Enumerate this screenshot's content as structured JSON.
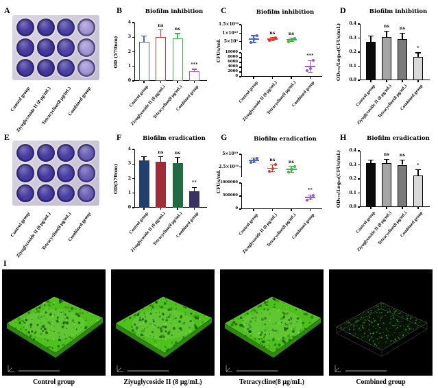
{
  "categories": [
    "Control group",
    "Ziyuglycoside II (8 μg/mL)",
    "Tetracycline(8 μg/mL)",
    "Combined group"
  ],
  "panels": {
    "A": {
      "letter": "A",
      "type": "well-plate-photo",
      "rows": 3,
      "columns": 4,
      "column_labels": [
        "Control group",
        "Ziyuglycoside II (8 μg/mL)",
        "Tetracycline(8 μg/mL)",
        "Combined group"
      ],
      "column_well_colors": [
        "#483ca2",
        "#463aa0",
        "#5044a8",
        "#a79ad8"
      ],
      "plate_color": "#cec9d8"
    },
    "B": {
      "letter": "B"
    },
    "C": {
      "letter": "C"
    },
    "D": {
      "letter": "D"
    },
    "E": {
      "letter": "E",
      "type": "well-plate-photo",
      "rows": 3,
      "columns": 4,
      "column_labels": [
        "Control group",
        "Ziyuglycoside II (8 μg/mL)",
        "Tetracycline(8 μg/mL)",
        "Combined group"
      ],
      "column_well_colors": [
        "#4a3ea6",
        "#483ca4",
        "#4c40a8",
        "#6d61b8"
      ],
      "plate_color": "#ccc7d4"
    },
    "F": {
      "letter": "F"
    },
    "G": {
      "letter": "G"
    },
    "H": {
      "letter": "H"
    },
    "I": {
      "letter": "I",
      "images": [
        {
          "caption": "Control group",
          "density": "dense"
        },
        {
          "caption": "Ziyuglycoside II (8 μg/mL)",
          "density": "dense"
        },
        {
          "caption": "Tetracycline(8 μg/mL)",
          "density": "dense"
        },
        {
          "caption": "Combined group",
          "density": "sparse"
        }
      ],
      "biofilm_color": "#4ec11c",
      "sparse_bg": "#081106"
    }
  },
  "chart_data": [
    {
      "panel": "B",
      "type": "bar",
      "title": "Biofilm inhibition",
      "ylabel": "OD (570nm)",
      "ylim": [
        0,
        4
      ],
      "ytick_labels": [
        "0",
        "1",
        "2",
        "3",
        "4"
      ],
      "categories": [
        "Control group",
        "Ziyuglycoside II (8 μg/mL)",
        "Tetracycline(8 μg/mL)",
        "Combined group"
      ],
      "values": [
        2.7,
        3.0,
        2.9,
        0.65
      ],
      "errors": [
        0.4,
        0.5,
        0.35,
        0.15
      ],
      "significance": [
        "",
        "ns",
        "ns",
        "***"
      ],
      "colors": [
        "#4a64c8",
        "#ee3124",
        "#3fb54b",
        "#9b59c6"
      ],
      "bar_style": "outline"
    },
    {
      "panel": "C",
      "type": "scatter-broken",
      "title": "Biofilm inhibition",
      "ylabel": "CFUs/mL",
      "categories": [
        "Control group",
        "Ziyuglycoside II (8 μg/mL)",
        "Tetracycline(8 μg/mL)",
        "Combined group"
      ],
      "upper": {
        "range": [
          0,
          15000000000.0
        ],
        "ticks": [
          {
            "v": 5000000000.0,
            "label": "5×10⁹"
          },
          {
            "v": 10000000000.0,
            "label": "1×10¹⁰"
          },
          {
            "v": 15000000000.0,
            "label": "1.5×10¹⁰"
          }
        ]
      },
      "lower": {
        "range": [
          0,
          10000
        ],
        "ticks": [
          {
            "v": 0,
            "label": "0"
          },
          {
            "v": 2000,
            "label": "2000"
          },
          {
            "v": 4000,
            "label": "4000"
          },
          {
            "v": 6000,
            "label": "6000"
          },
          {
            "v": 8000,
            "label": "8000"
          },
          {
            "v": 10000,
            "label": "10000"
          }
        ]
      },
      "groups": [
        {
          "label": "Control group",
          "segment": "upper",
          "points": [
            4500000000.0,
            6500000000.0,
            8500000000.0
          ],
          "mean": 6500000000.0,
          "sd": 2000000000.0,
          "sig": "",
          "color": "#4a64c8"
        },
        {
          "label": "Ziyuglycoside II (8 μg/mL)",
          "segment": "upper",
          "points": [
            5500000000.0,
            6500000000.0,
            7500000000.0
          ],
          "mean": 6500000000.0,
          "sd": 1000000000.0,
          "sig": "ns",
          "color": "#ee3124"
        },
        {
          "label": "Tetracycline(8 μg/mL)",
          "segment": "upper",
          "points": [
            5000000000.0,
            6000000000.0,
            7000000000.0
          ],
          "mean": 6000000000.0,
          "sd": 1000000000.0,
          "sig": "ns",
          "color": "#3fb54b"
        },
        {
          "label": "Combined group",
          "segment": "lower",
          "points": [
            2600,
            3400,
            6900
          ],
          "mean": 4300,
          "sd": 2400,
          "sig": "***",
          "color": "#9b59c6"
        }
      ]
    },
    {
      "panel": "D",
      "type": "bar",
      "title": "Biofilm inhibition",
      "ylabel": "OD₅₇₀/Log₁₀(CFUs/mL)",
      "ylim": [
        0,
        0.4
      ],
      "ytick_labels": [
        "0.0",
        "0.1",
        "0.2",
        "0.3",
        "0.4"
      ],
      "categories": [
        "Control group",
        "Ziyuglycoside II (8 μg/mL)",
        "Tetracycline(8 μg/mL)",
        "Combined group"
      ],
      "values": [
        0.275,
        0.305,
        0.295,
        0.165
      ],
      "errors": [
        0.04,
        0.045,
        0.04,
        0.03
      ],
      "significance": [
        "",
        "ns",
        "ns",
        "*"
      ],
      "colors": [
        "#0a0a0a",
        "#a6a6a6",
        "#7b7b7b",
        "#d9d9d9"
      ],
      "bar_style": "filled-gray"
    },
    {
      "panel": "F",
      "type": "bar",
      "title": "Biofilm eradication",
      "ylabel": "OD(570nm)",
      "ylim": [
        0,
        4
      ],
      "ytick_labels": [
        "0",
        "1",
        "2",
        "3",
        "4"
      ],
      "categories": [
        "Control group",
        "Ziyuglycoside II (8 μg/mL)",
        "Tetracycline(8 μg/mL)",
        "Combined group"
      ],
      "values": [
        3.25,
        3.15,
        3.05,
        1.15
      ],
      "errors": [
        0.25,
        0.35,
        0.4,
        0.25
      ],
      "significance": [
        "",
        "ns",
        "ns",
        "**"
      ],
      "colors": [
        "#21406e",
        "#a02c38",
        "#1e6b44",
        "#3a3165"
      ],
      "bar_style": "filled"
    },
    {
      "panel": "G",
      "type": "scatter-broken",
      "title": "Biofilm eradication",
      "ylabel": "CFUs/mL",
      "categories": [
        "Control group",
        "Ziyuglycoside II (8 μg/mL)",
        "Tetracycline(8 μg/mL)",
        "Combined group"
      ],
      "upper": {
        "range": [
          5000000000.0,
          50000000000.0
        ],
        "ticks": [
          {
            "v": 25000000000.0,
            "label": "2.5×10¹⁰"
          },
          {
            "v": 50000000000.0,
            "label": "5×10¹⁰"
          }
        ]
      },
      "lower": {
        "range": [
          0,
          1000000
        ],
        "ticks": [
          {
            "v": 0,
            "label": "0"
          },
          {
            "v": 500000,
            "label": "500000"
          },
          {
            "v": 1000000,
            "label": "1000000"
          }
        ]
      },
      "groups": [
        {
          "label": "Control group",
          "segment": "upper",
          "points": [
            33000000000.0,
            38000000000.0,
            42000000000.0
          ],
          "mean": 38000000000.0,
          "sd": 4500000000.0,
          "sig": "",
          "color": "#4a64c8"
        },
        {
          "label": "Ziyuglycoside II (8 μg/mL)",
          "segment": "upper",
          "points": [
            16000000000.0,
            21000000000.0,
            29000000000.0
          ],
          "mean": 22000000000.0,
          "sd": 6500000000.0,
          "sig": "ns",
          "color": "#ee3124"
        },
        {
          "label": "Tetracycline(8 μg/mL)",
          "segment": "upper",
          "points": [
            14000000000.0,
            20000000000.0,
            26000000000.0
          ],
          "mean": 20000000000.0,
          "sd": 6000000000.0,
          "sig": "ns",
          "color": "#3fb54b"
        },
        {
          "label": "Combined group",
          "segment": "lower",
          "points": [
            350000,
            460000,
            530000
          ],
          "mean": 450000,
          "sd": 90000,
          "sig": "**",
          "color": "#9b59c6"
        }
      ]
    },
    {
      "panel": "H",
      "type": "bar",
      "title": "Biofilm eradication",
      "ylabel": "OD₅₇₀/Log₁₀(CFUs/mL)",
      "ylim": [
        0,
        0.4
      ],
      "ytick_labels": [
        "0.0",
        "0.1",
        "0.2",
        "0.3",
        "0.4"
      ],
      "categories": [
        "Control group",
        "Ziyuglycoside II (8 μg/mL)",
        "Tetracycline(8 μg/mL)",
        "Combined group"
      ],
      "values": [
        0.31,
        0.31,
        0.3,
        0.225
      ],
      "errors": [
        0.025,
        0.03,
        0.035,
        0.04
      ],
      "significance": [
        "",
        "ns",
        "ns",
        "*"
      ],
      "colors": [
        "#0a0a0a",
        "#a6a6a6",
        "#7b7b7b",
        "#d9d9d9"
      ],
      "bar_style": "filled-gray"
    }
  ]
}
